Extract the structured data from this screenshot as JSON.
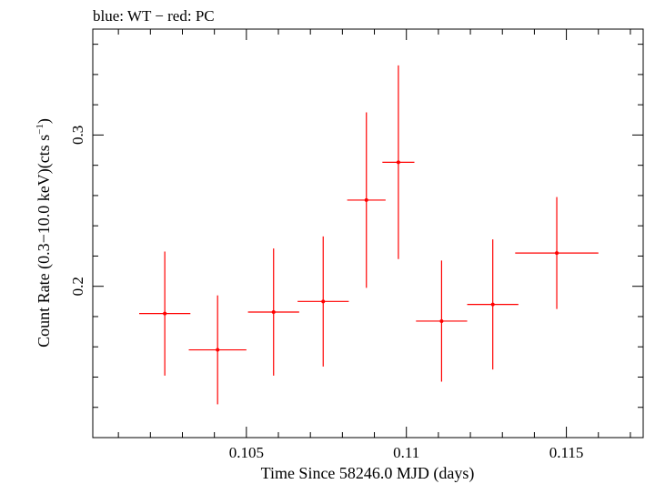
{
  "chart_data": {
    "type": "scatter",
    "title": "blue: WT − red: PC",
    "xlabel": "Time Since 58246.0 MJD (days)",
    "ylabel_main": "Count Rate (0.3−10.0 keV)(cts s",
    "ylabel_sup": "−1",
    "ylabel_end": ")",
    "xlim": [
      0.1002,
      0.1174
    ],
    "ylim": [
      0.1,
      0.37
    ],
    "grid": false,
    "x_ticks": [
      {
        "value": 0.105,
        "label": "0.105"
      },
      {
        "value": 0.11,
        "label": "0.11"
      },
      {
        "value": 0.115,
        "label": "0.115"
      }
    ],
    "x_minor_ticks": [
      0.101,
      0.102,
      0.103,
      0.104,
      0.106,
      0.107,
      0.108,
      0.109,
      0.111,
      0.112,
      0.113,
      0.114,
      0.116,
      0.117
    ],
    "y_ticks": [
      {
        "value": 0.2,
        "label": "0.2"
      },
      {
        "value": 0.3,
        "label": "0.3"
      }
    ],
    "y_minor_ticks": [
      0.12,
      0.14,
      0.16,
      0.18,
      0.22,
      0.24,
      0.26,
      0.28,
      0.32,
      0.34,
      0.36
    ],
    "series": [
      {
        "color": "#ff0000",
        "points": [
          {
            "x": 0.10245,
            "xerr_lo": 0.0008,
            "xerr_hi": 0.0008,
            "y": 0.182,
            "yerr_lo": 0.041,
            "yerr_hi": 0.041
          },
          {
            "x": 0.1041,
            "xerr_lo": 0.0009,
            "xerr_hi": 0.0009,
            "y": 0.158,
            "yerr_lo": 0.036,
            "yerr_hi": 0.036
          },
          {
            "x": 0.10585,
            "xerr_lo": 0.0008,
            "xerr_hi": 0.0008,
            "y": 0.183,
            "yerr_lo": 0.042,
            "yerr_hi": 0.042
          },
          {
            "x": 0.1074,
            "xerr_lo": 0.0008,
            "xerr_hi": 0.0008,
            "y": 0.19,
            "yerr_lo": 0.043,
            "yerr_hi": 0.043
          },
          {
            "x": 0.10875,
            "xerr_lo": 0.0006,
            "xerr_hi": 0.0006,
            "y": 0.257,
            "yerr_lo": 0.058,
            "yerr_hi": 0.058
          },
          {
            "x": 0.10975,
            "xerr_lo": 0.0005,
            "xerr_hi": 0.0005,
            "y": 0.282,
            "yerr_lo": 0.064,
            "yerr_hi": 0.064
          },
          {
            "x": 0.1111,
            "xerr_lo": 0.0008,
            "xerr_hi": 0.0008,
            "y": 0.177,
            "yerr_lo": 0.04,
            "yerr_hi": 0.04
          },
          {
            "x": 0.1127,
            "xerr_lo": 0.0008,
            "xerr_hi": 0.0008,
            "y": 0.188,
            "yerr_lo": 0.043,
            "yerr_hi": 0.043
          },
          {
            "x": 0.1147,
            "xerr_lo": 0.0013,
            "xerr_hi": 0.0013,
            "y": 0.222,
            "yerr_lo": 0.037,
            "yerr_hi": 0.037
          }
        ]
      }
    ]
  }
}
